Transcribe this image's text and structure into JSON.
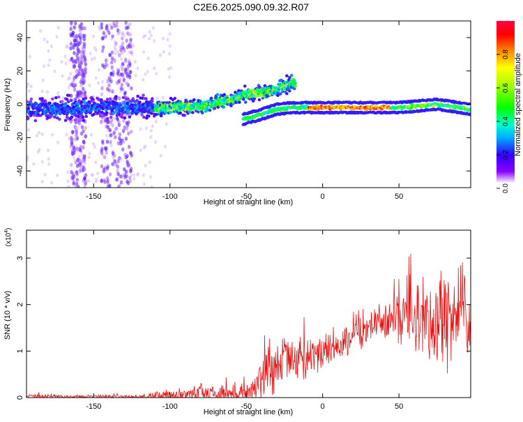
{
  "title": "C2E6.2025.090.09.32.R07",
  "colors": {
    "spectrum_dots": "#8800ff",
    "snr_line": "#ee1111",
    "axis": "#000000"
  },
  "chart_data": [
    {
      "type": "heatmap",
      "xlabel": "Height of straight line (km)",
      "ylabel": "Frequency (Hz)",
      "xlim": [
        -194,
        97
      ],
      "ylim": [
        -50,
        50
      ],
      "xticks": [
        -150,
        -100,
        -50,
        0,
        50
      ],
      "yticks": [
        -40,
        -20,
        0,
        20,
        40
      ],
      "colorbar": {
        "label": "Normalized spectral amplitude",
        "range": [
          0,
          1
        ],
        "ticks": [
          0.0,
          0.2,
          0.4,
          0.6,
          0.8
        ],
        "colormap": "rainbow (violet-blue-cyan-green-yellow-red)"
      },
      "ridge_frequency": [
        {
          "x": -194,
          "y": -3
        },
        {
          "x": -150,
          "y": -2
        },
        {
          "x": -100,
          "y": -2
        },
        {
          "x": -80,
          "y": -1
        },
        {
          "x": -60,
          "y": 3
        },
        {
          "x": -50,
          "y": 6
        },
        {
          "x": -40,
          "y": 7
        },
        {
          "x": -30,
          "y": 9
        },
        {
          "x": -20,
          "y": 13
        }
      ],
      "lower_branch": [
        {
          "x": -52,
          "y": -9
        },
        {
          "x": -40,
          "y": -6
        },
        {
          "x": -30,
          "y": -3
        },
        {
          "x": -20,
          "y": -2
        },
        {
          "x": -10,
          "y": -2
        },
        {
          "x": 0,
          "y": -2
        },
        {
          "x": 50,
          "y": -2
        },
        {
          "x": 75,
          "y": 0
        },
        {
          "x": 97,
          "y": -3
        }
      ],
      "peak_amplitude_region": {
        "x_from": -10,
        "x_to": 45,
        "frequency": -2,
        "amplitude": 1.0
      },
      "broadband_noise_columns": [
        {
          "x_from": -165,
          "x_to": -155
        },
        {
          "x_from": -145,
          "x_to": -125
        }
      ]
    },
    {
      "type": "line",
      "xlabel": "Height of straight line (km)",
      "ylabel": "SNR (10 * v/v)",
      "yscale_label": "(x10",
      "yscale_exponent": "4",
      "ylabel_suffix": ")",
      "xlim": [
        -194,
        97
      ],
      "ylim": [
        0,
        3.6
      ],
      "xticks": [
        -150,
        -100,
        -50,
        0,
        50
      ],
      "yticks": [
        0,
        1,
        2,
        3
      ],
      "series": [
        {
          "color": "#ee1111",
          "envelope": [
            {
              "x": -194,
              "mean": 0.03,
              "spread": 0.05
            },
            {
              "x": -150,
              "mean": 0.02,
              "spread": 0.04
            },
            {
              "x": -120,
              "mean": 0.02,
              "spread": 0.05
            },
            {
              "x": -100,
              "mean": 0.05,
              "spread": 0.15
            },
            {
              "x": -80,
              "mean": 0.06,
              "spread": 0.25
            },
            {
              "x": -60,
              "mean": 0.06,
              "spread": 0.2
            },
            {
              "x": -45,
              "mean": 0.15,
              "spread": 0.3
            },
            {
              "x": -38,
              "mean": 0.6,
              "spread": 0.9
            },
            {
              "x": -30,
              "mean": 0.7,
              "spread": 0.7
            },
            {
              "x": -20,
              "mean": 0.75,
              "spread": 0.5
            },
            {
              "x": -10,
              "mean": 0.85,
              "spread": 0.6
            },
            {
              "x": 0,
              "mean": 1.0,
              "spread": 0.4
            },
            {
              "x": 10,
              "mean": 1.05,
              "spread": 0.35
            },
            {
              "x": 20,
              "mean": 1.25,
              "spread": 0.4
            },
            {
              "x": 35,
              "mean": 1.6,
              "spread": 0.4
            },
            {
              "x": 45,
              "mean": 1.65,
              "spread": 0.5
            },
            {
              "x": 55,
              "mean": 1.75,
              "spread": 0.9
            },
            {
              "x": 70,
              "mean": 1.6,
              "spread": 1.3
            },
            {
              "x": 85,
              "mean": 1.6,
              "spread": 1.3
            },
            {
              "x": 97,
              "mean": 1.5,
              "spread": 1.1
            }
          ]
        }
      ]
    }
  ]
}
